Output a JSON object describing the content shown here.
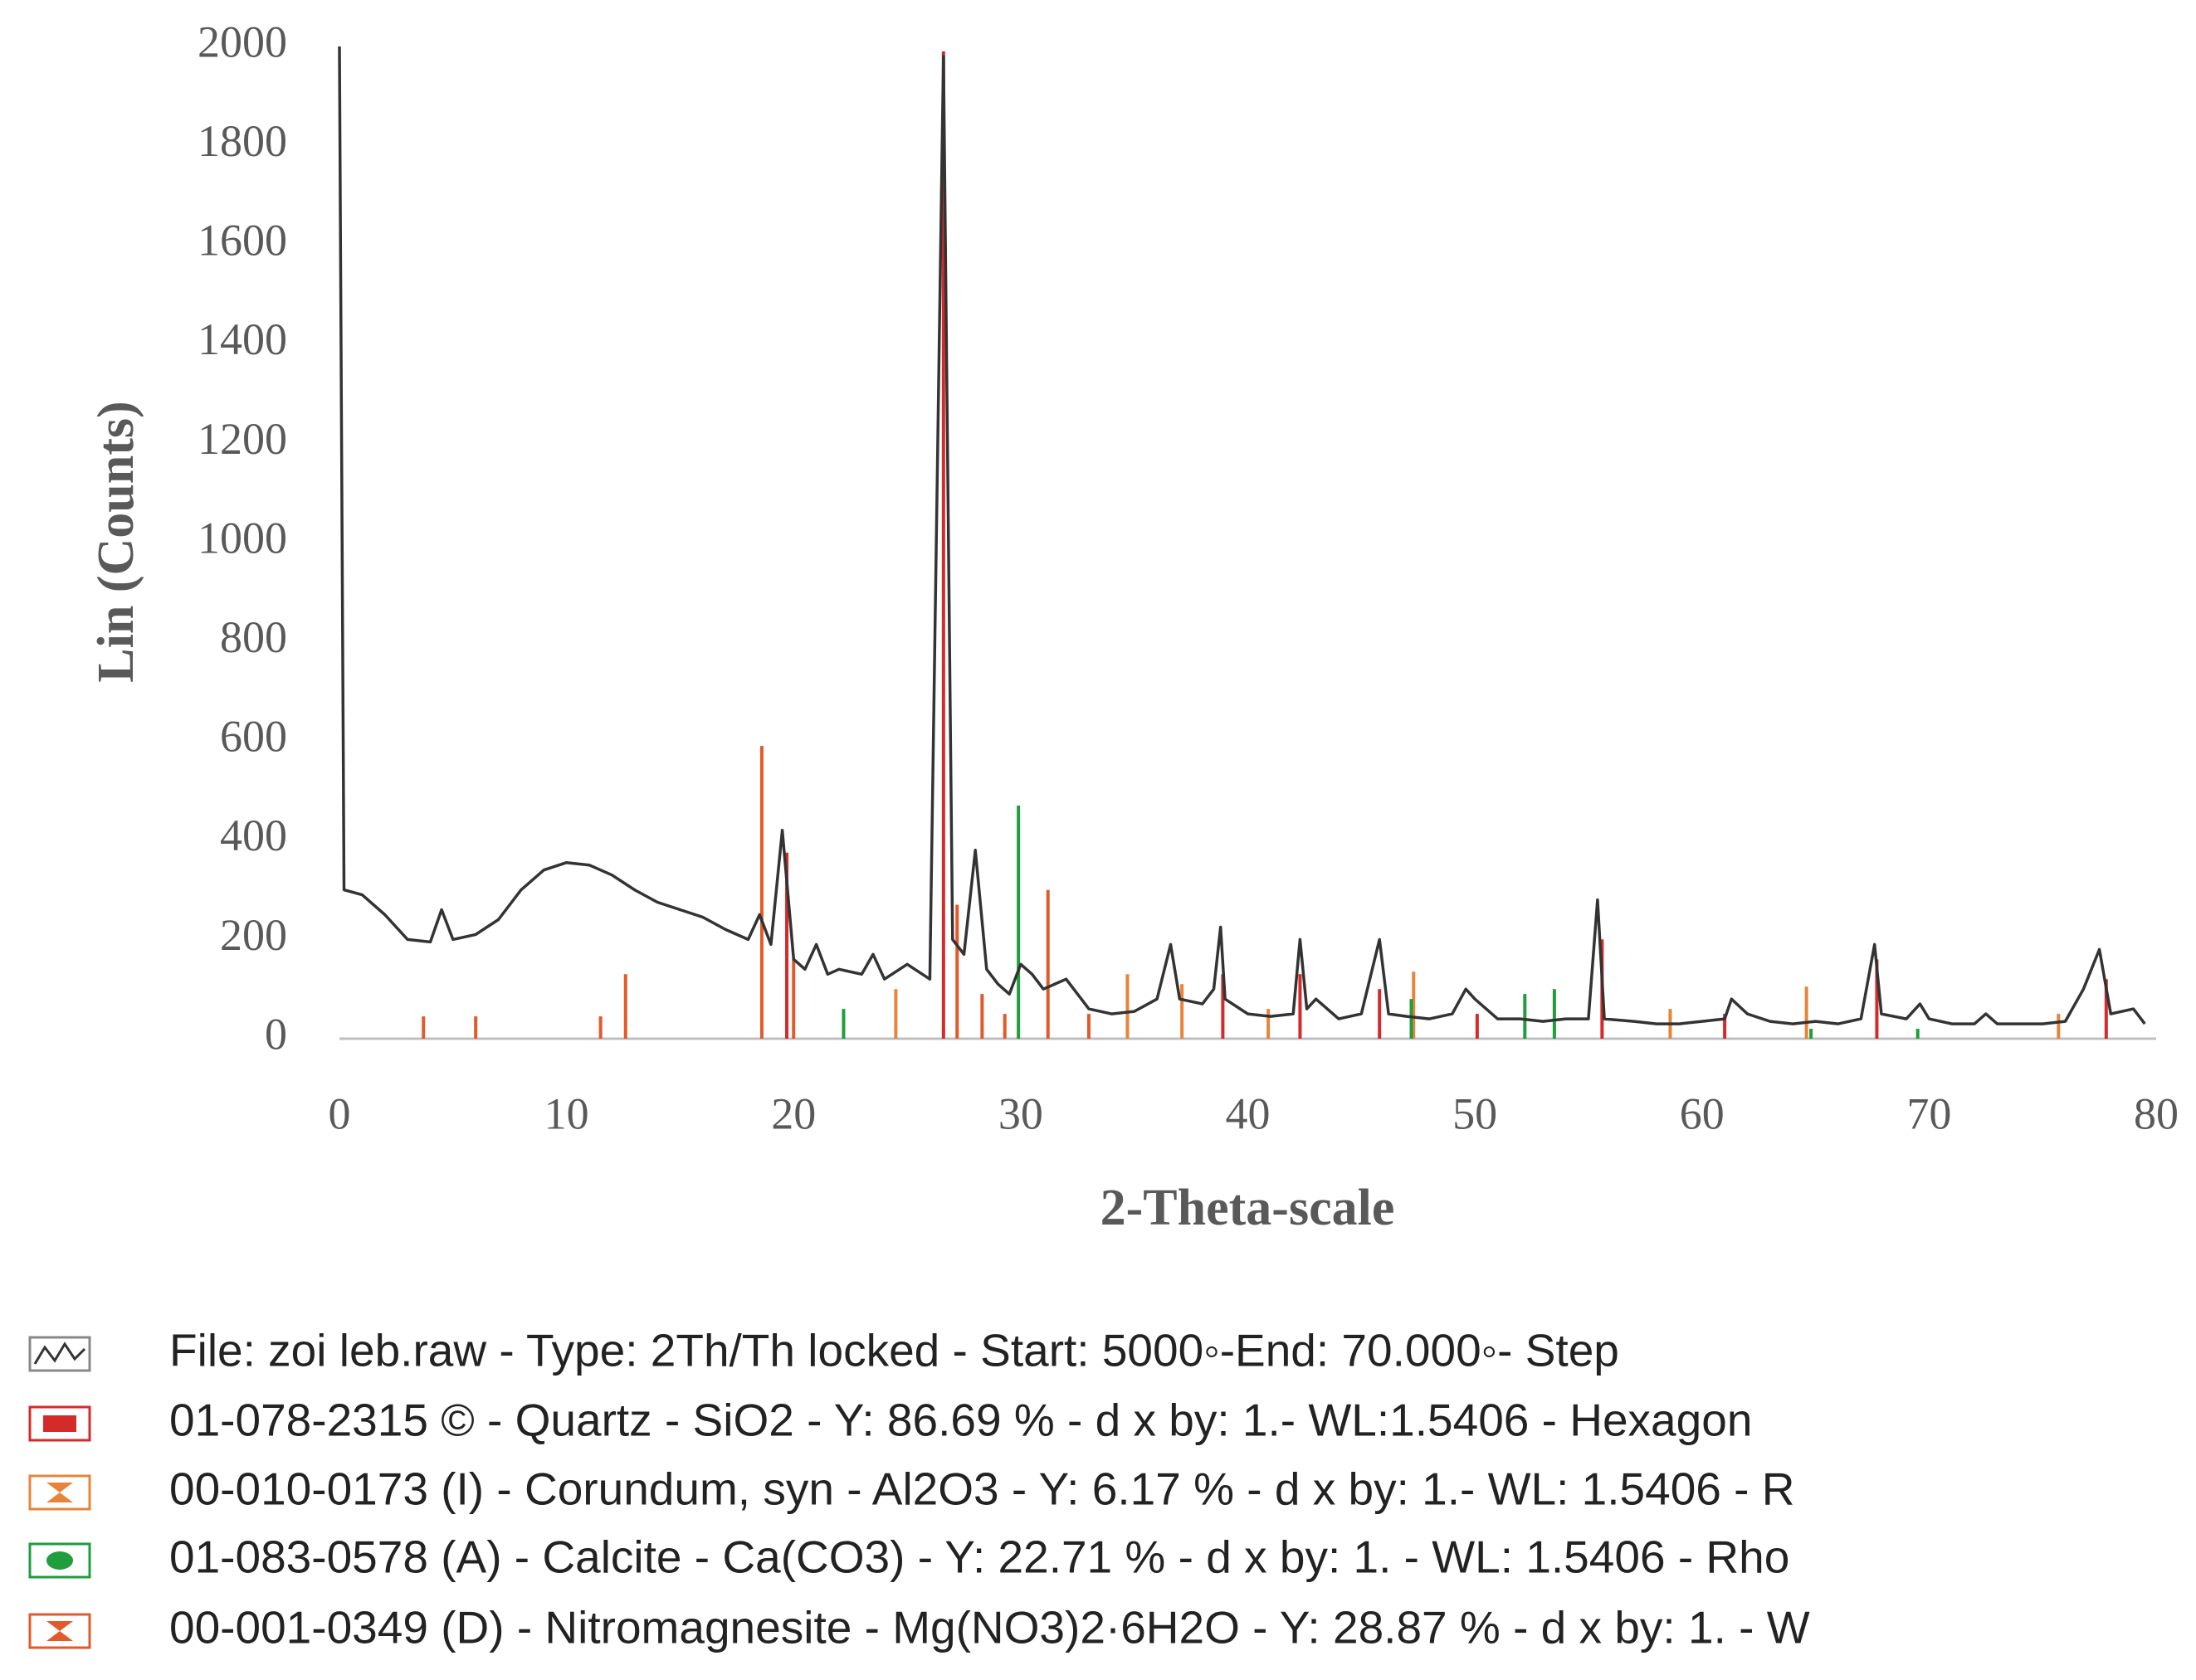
{
  "chart_data": {
    "type": "line",
    "xlabel": "2-Theta-scale",
    "ylabel": "Lin (Counts)",
    "xlim": [
      0,
      80
    ],
    "xticks": [
      0,
      10,
      20,
      30,
      40,
      50,
      60,
      70,
      80
    ],
    "ylim": [
      0,
      2000
    ],
    "yticks": [
      0,
      200,
      400,
      600,
      800,
      1000,
      1200,
      1400,
      1600,
      1800,
      2000
    ],
    "series": [
      {
        "name": "File: zoi leb.raw - Type: 2Th/Th locked - Start: 5000◦-End: 70.000◦- Step",
        "kind": "line",
        "marker": "pattern",
        "color": "#333333",
        "x": [
          0,
          0.2,
          1,
          2,
          3,
          4,
          4.5,
          5,
          6,
          7,
          8,
          9,
          10,
          11,
          12,
          13,
          14,
          15,
          16,
          17,
          18,
          18.5,
          19,
          19.5,
          20,
          20.5,
          21,
          21.5,
          22,
          23,
          23.5,
          24,
          25,
          26,
          26.6,
          27,
          27.5,
          28,
          28.5,
          29,
          29.5,
          30,
          30.5,
          31,
          32,
          33,
          34,
          35,
          36,
          36.6,
          37,
          38,
          38.5,
          38.8,
          39,
          40,
          41,
          42,
          42.3,
          42.6,
          43,
          44,
          45,
          45.8,
          46.2,
          47,
          48,
          49,
          49.6,
          50,
          51,
          52,
          53,
          54,
          55,
          55.4,
          55.7,
          57,
          58,
          59,
          60,
          61,
          61.3,
          62,
          63,
          64,
          65,
          66,
          67,
          67.6,
          67.9,
          69,
          69.6,
          70,
          71,
          72,
          72.5,
          73,
          75,
          76,
          76.8,
          77.5,
          78,
          79,
          79.5
        ],
        "values": [
          2000,
          300,
          290,
          250,
          200,
          195,
          260,
          200,
          210,
          240,
          300,
          340,
          355,
          350,
          330,
          300,
          275,
          260,
          245,
          220,
          200,
          250,
          190,
          420,
          160,
          140,
          190,
          130,
          140,
          130,
          170,
          120,
          150,
          120,
          1980,
          200,
          170,
          380,
          140,
          110,
          90,
          150,
          130,
          100,
          120,
          60,
          50,
          55,
          80,
          190,
          80,
          70,
          100,
          225,
          80,
          50,
          45,
          50,
          200,
          60,
          80,
          40,
          50,
          200,
          50,
          45,
          40,
          50,
          100,
          80,
          40,
          40,
          35,
          40,
          40,
          280,
          40,
          35,
          30,
          30,
          35,
          40,
          80,
          50,
          35,
          30,
          35,
          30,
          40,
          190,
          50,
          40,
          70,
          40,
          30,
          30,
          50,
          30,
          30,
          35,
          100,
          180,
          50,
          60,
          30
        ]
      },
      {
        "name": "01-078-2315 © - Quartz - SiO2 - Y: 86.69 % - d x by: 1.- WL:1.5406 - Hexagon",
        "kind": "stick",
        "marker": "rect",
        "color": "#d42a2a",
        "x": [
          19.7,
          26.6,
          38.9,
          42.3,
          45.8,
          50.1,
          55.6,
          61,
          67.7,
          77.8
        ],
        "values": [
          375,
          1990,
          130,
          130,
          100,
          50,
          200,
          50,
          160,
          120
        ]
      },
      {
        "name": "00-010-0173 (I) - Corundum, syn - Al2O3 - Y: 6.17 % - d x by: 1.- WL: 1.5406 - R",
        "kind": "stick",
        "marker": "bowtie",
        "color": "#e8843a",
        "x": [
          24.5,
          34.7,
          37.1,
          40.9,
          47.3,
          58.6,
          64.6,
          75.7
        ],
        "values": [
          100,
          130,
          110,
          60,
          135,
          60,
          105,
          50
        ]
      },
      {
        "name": "01-083-0578 (A) - Calcite - Ca(CO3) - Y: 22.71 % - d x by: 1. - WL: 1.5406 - Rho",
        "kind": "stick",
        "marker": "dot",
        "color": "#1e9e3c",
        "x": [
          22.2,
          29.9,
          47.2,
          52.2,
          53.5,
          64.8,
          69.5
        ],
        "values": [
          60,
          470,
          80,
          90,
          100,
          20,
          20
        ]
      },
      {
        "name": "00-001-0349 (D) - Nitromagnesite - Mg(NO3)2·6H2O - Y: 28.87 % - d x by: 1. - W",
        "kind": "stick",
        "marker": "bowtie",
        "color": "#e25a2a",
        "x": [
          3.7,
          6,
          11.5,
          12.6,
          18.6,
          20,
          27.2,
          28.3,
          29.3,
          31.2,
          33
        ],
        "values": [
          45,
          45,
          45,
          130,
          590,
          160,
          270,
          90,
          50,
          300,
          50
        ]
      }
    ]
  }
}
